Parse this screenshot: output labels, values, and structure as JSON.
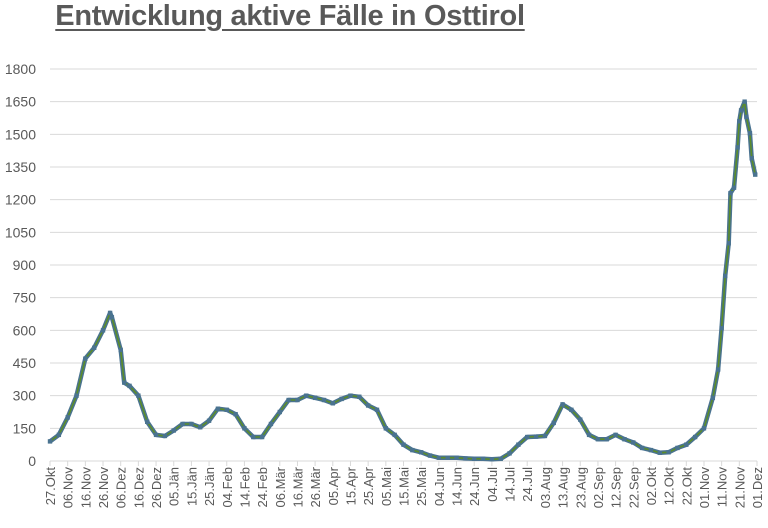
{
  "chart_data": {
    "type": "line",
    "title": "Entwicklung aktive Fälle in Osttirol",
    "xlabel": "",
    "ylabel": "",
    "ylim": [
      0,
      1800
    ],
    "yticks": [
      0,
      150,
      300,
      450,
      600,
      750,
      900,
      1050,
      1200,
      1350,
      1500,
      1650,
      1800
    ],
    "xlim": [
      "2020-10-27",
      "2021-12-01"
    ],
    "xtick_labels": [
      "27.Okt",
      "06.Nov",
      "16.Nov",
      "26.Nov",
      "06.Dez",
      "16.Dez",
      "26.Dez",
      "05.Jän",
      "15.Jän",
      "25.Jän",
      "04.Feb",
      "14.Feb",
      "24.Feb",
      "06.Mär",
      "16.Mär",
      "26.Mär",
      "05.Apr",
      "15.Apr",
      "25.Apr",
      "05.Mai",
      "15.Mai",
      "25.Mai",
      "04.Jun",
      "14.Jun",
      "24.Jun",
      "04.Jul",
      "14.Jul",
      "24.Jul",
      "03.Aug",
      "13.Aug",
      "23.Aug",
      "02.Sep",
      "12.Sep",
      "22.Sep",
      "02.Okt",
      "12.Okt",
      "22.Okt",
      "01.Nov",
      "11.Nov",
      "21.Nov",
      "01.Dez"
    ],
    "grid": true,
    "colors": {
      "line": "#5b8c2a",
      "marker": "#4a7390",
      "grid": "#d9d9d9",
      "text": "#595959"
    },
    "series": [
      {
        "points": [
          [
            "2020-10-27",
            90
          ],
          [
            "2020-11-01",
            120
          ],
          [
            "2020-11-06",
            200
          ],
          [
            "2020-11-11",
            300
          ],
          [
            "2020-11-16",
            470
          ],
          [
            "2020-11-21",
            520
          ],
          [
            "2020-11-26",
            600
          ],
          [
            "2020-11-30",
            680
          ],
          [
            "2020-12-01",
            660
          ],
          [
            "2020-12-06",
            510
          ],
          [
            "2020-12-08",
            360
          ],
          [
            "2020-12-11",
            345
          ],
          [
            "2020-12-16",
            300
          ],
          [
            "2020-12-21",
            180
          ],
          [
            "2020-12-26",
            120
          ],
          [
            "2020-12-31",
            115
          ],
          [
            "2021-01-05",
            140
          ],
          [
            "2021-01-10",
            170
          ],
          [
            "2021-01-15",
            170
          ],
          [
            "2021-01-20",
            155
          ],
          [
            "2021-01-25",
            185
          ],
          [
            "2021-01-30",
            240
          ],
          [
            "2021-02-04",
            235
          ],
          [
            "2021-02-09",
            215
          ],
          [
            "2021-02-14",
            150
          ],
          [
            "2021-02-19",
            110
          ],
          [
            "2021-02-24",
            110
          ],
          [
            "2021-03-01",
            170
          ],
          [
            "2021-03-06",
            225
          ],
          [
            "2021-03-11",
            280
          ],
          [
            "2021-03-16",
            280
          ],
          [
            "2021-03-21",
            300
          ],
          [
            "2021-03-26",
            290
          ],
          [
            "2021-03-31",
            280
          ],
          [
            "2021-04-05",
            265
          ],
          [
            "2021-04-10",
            285
          ],
          [
            "2021-04-15",
            300
          ],
          [
            "2021-04-20",
            295
          ],
          [
            "2021-04-25",
            255
          ],
          [
            "2021-04-30",
            235
          ],
          [
            "2021-05-05",
            150
          ],
          [
            "2021-05-10",
            120
          ],
          [
            "2021-05-15",
            75
          ],
          [
            "2021-05-20",
            50
          ],
          [
            "2021-05-25",
            40
          ],
          [
            "2021-05-30",
            25
          ],
          [
            "2021-06-04",
            15
          ],
          [
            "2021-06-09",
            15
          ],
          [
            "2021-06-14",
            15
          ],
          [
            "2021-06-19",
            12
          ],
          [
            "2021-06-24",
            10
          ],
          [
            "2021-06-29",
            10
          ],
          [
            "2021-07-04",
            8
          ],
          [
            "2021-07-09",
            10
          ],
          [
            "2021-07-14",
            35
          ],
          [
            "2021-07-19",
            75
          ],
          [
            "2021-07-24",
            110
          ],
          [
            "2021-07-29",
            112
          ],
          [
            "2021-08-03",
            115
          ],
          [
            "2021-08-08",
            175
          ],
          [
            "2021-08-13",
            260
          ],
          [
            "2021-08-18",
            235
          ],
          [
            "2021-08-23",
            190
          ],
          [
            "2021-08-28",
            120
          ],
          [
            "2021-09-02",
            100
          ],
          [
            "2021-09-07",
            100
          ],
          [
            "2021-09-12",
            120
          ],
          [
            "2021-09-17",
            100
          ],
          [
            "2021-09-22",
            85
          ],
          [
            "2021-09-27",
            60
          ],
          [
            "2021-10-02",
            50
          ],
          [
            "2021-10-07",
            38
          ],
          [
            "2021-10-12",
            40
          ],
          [
            "2021-10-17",
            60
          ],
          [
            "2021-10-22",
            75
          ],
          [
            "2021-10-27",
            110
          ],
          [
            "2021-11-01",
            150
          ],
          [
            "2021-11-06",
            290
          ],
          [
            "2021-11-09",
            420
          ],
          [
            "2021-11-11",
            610
          ],
          [
            "2021-11-13",
            850
          ],
          [
            "2021-11-15",
            1000
          ],
          [
            "2021-11-16",
            1230
          ],
          [
            "2021-11-18",
            1255
          ],
          [
            "2021-11-20",
            1440
          ],
          [
            "2021-11-21",
            1560
          ],
          [
            "2021-11-22",
            1610
          ],
          [
            "2021-11-24",
            1650
          ],
          [
            "2021-11-25",
            1580
          ],
          [
            "2021-11-27",
            1505
          ],
          [
            "2021-11-28",
            1390
          ],
          [
            "2021-11-30",
            1315
          ]
        ]
      }
    ]
  }
}
